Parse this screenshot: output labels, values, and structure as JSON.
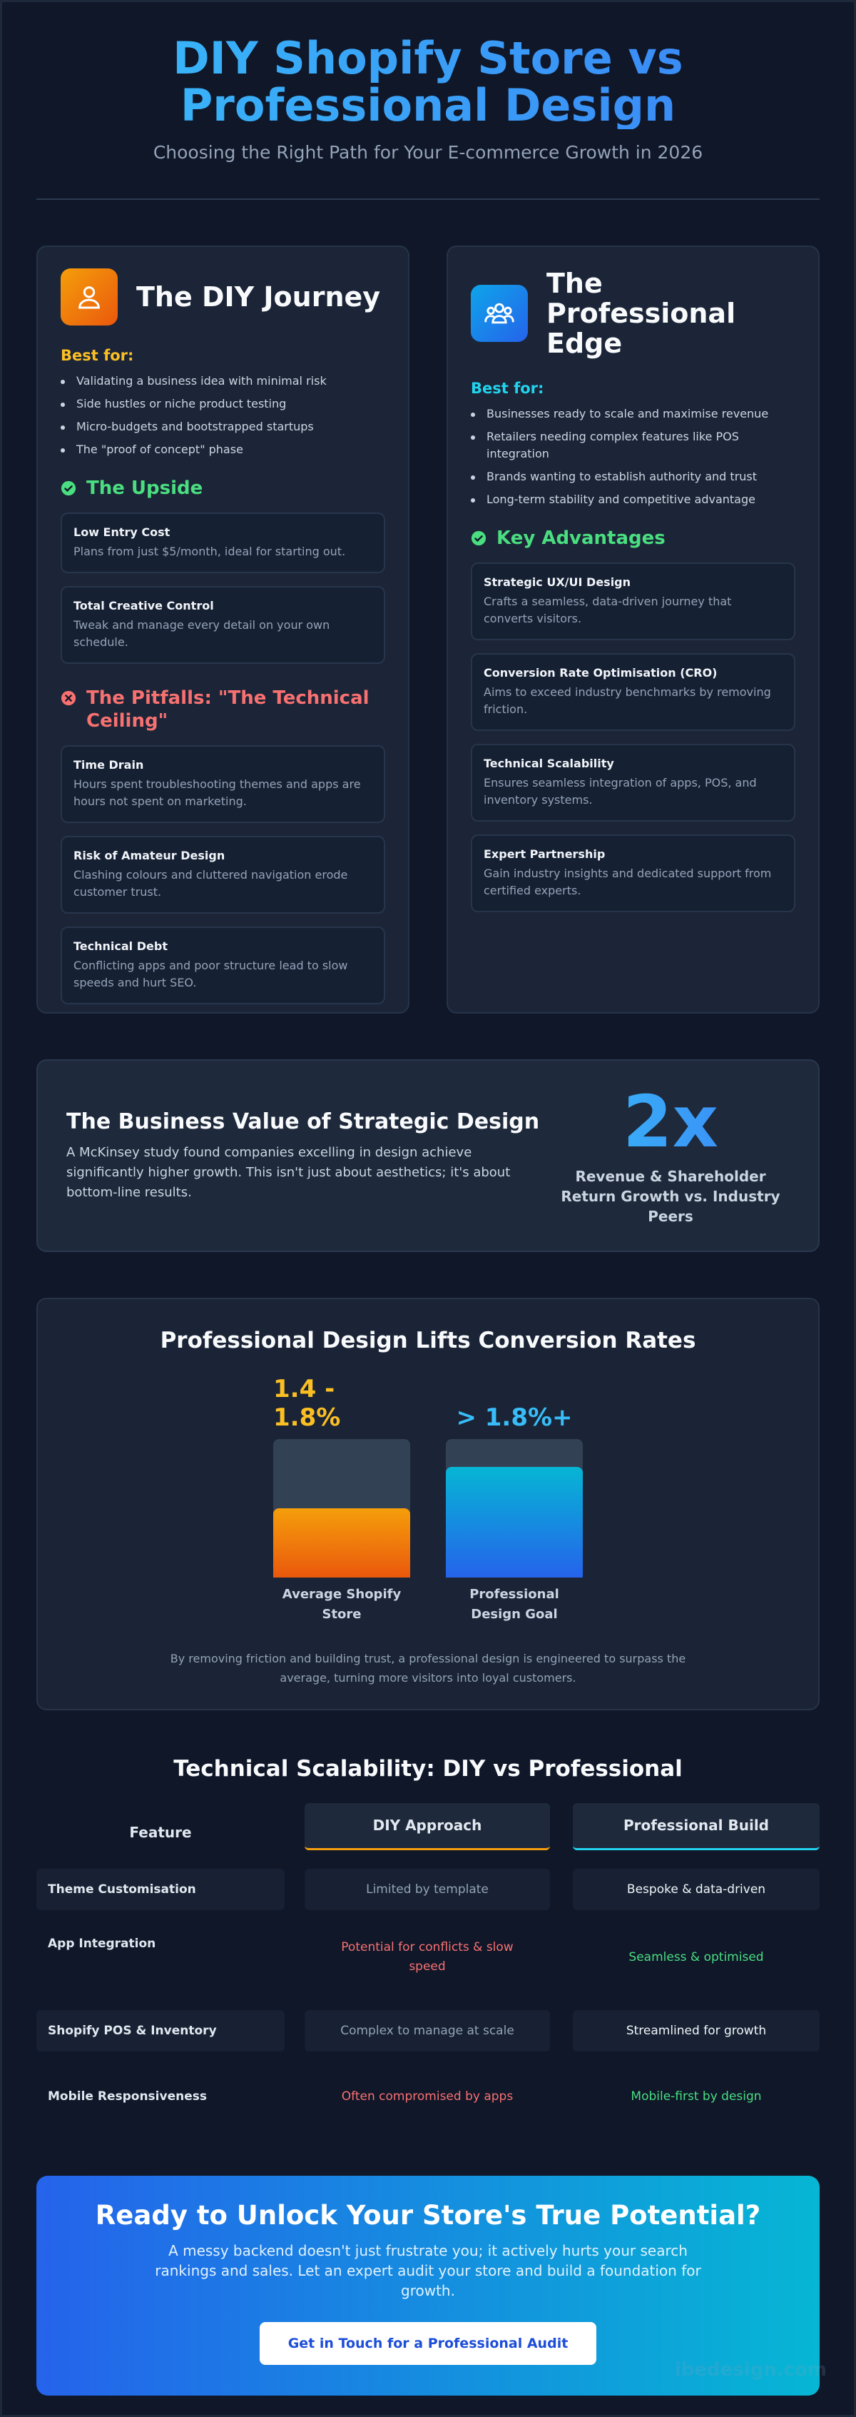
{
  "header": {
    "title": "DIY Shopify Store vs Professional Design",
    "subtitle": "Choosing the Right Path for Your E-commerce Growth in 2026"
  },
  "diy": {
    "icon": "user-icon",
    "title": "The DIY Journey",
    "best_for_label": "Best for:",
    "best_for": [
      "Validating a business idea with minimal risk",
      "Side hustles or niche product testing",
      "Micro-budgets and bootstrapped startups",
      "The \"proof of concept\" phase"
    ],
    "upside_title": "The Upside",
    "upside": [
      {
        "title": "Low Entry Cost",
        "text": "Plans from just $5/month, ideal for starting out."
      },
      {
        "title": "Total Creative Control",
        "text": "Tweak and manage every detail on your own schedule."
      }
    ],
    "pitfalls_title": "The Pitfalls: \"The Technical Ceiling\"",
    "pitfalls": [
      {
        "title": "Time Drain",
        "text": "Hours spent troubleshooting themes and apps are hours not spent on marketing."
      },
      {
        "title": "Risk of Amateur Design",
        "text": "Clashing colours and cluttered navigation erode customer trust."
      },
      {
        "title": "Technical Debt",
        "text": "Conflicting apps and poor structure lead to slow speeds and hurt SEO."
      }
    ]
  },
  "pro": {
    "icon": "users-icon",
    "title": "The Professional Edge",
    "best_for_label": "Best for:",
    "best_for": [
      "Businesses ready to scale and maximise revenue",
      "Retailers needing complex features like POS integration",
      "Brands wanting to establish authority and trust",
      "Long-term stability and competitive advantage"
    ],
    "advantages_title": "Key Advantages",
    "advantages": [
      {
        "title": "Strategic UX/UI Design",
        "text": "Crafts a seamless, data-driven journey that converts visitors."
      },
      {
        "title": "Conversion Rate Optimisation (CRO)",
        "text": "Aims to exceed industry benchmarks by removing friction."
      },
      {
        "title": "Technical Scalability",
        "text": "Ensures seamless integration of apps, POS, and inventory systems."
      },
      {
        "title": "Expert Partnership",
        "text": "Gain industry insights and dedicated support from certified experts."
      }
    ]
  },
  "value": {
    "title": "The Business Value of Strategic Design",
    "text": "A McKinsey study found companies excelling in design achieve significantly higher growth. This isn't just about aesthetics; it's about bottom-line results.",
    "stat": "2x",
    "stat_caption": "Revenue & Shareholder Return Growth vs. Industry Peers"
  },
  "conversion": {
    "title": "Professional Design Lifts Conversion Rates",
    "note": "By removing friction and building trust, a professional design is engineered to surpass the average, turning more visitors into loyal customers."
  },
  "chart_data": {
    "type": "bar",
    "title": "Professional Design Lifts Conversion Rates",
    "categories": [
      "Average Shopify Store",
      "Professional Design Goal"
    ],
    "value_labels": [
      "1.4 - 1.8%",
      "> 1.8%+"
    ],
    "values": [
      0.5,
      0.8
    ],
    "colors": [
      "#f59e0b",
      "#06b6d4"
    ]
  },
  "scalability": {
    "title": "Technical Scalability: DIY vs Professional",
    "headers": [
      "Feature",
      "DIY Approach",
      "Professional Build"
    ],
    "rows": [
      {
        "feature": "Theme Customisation",
        "diy": "Limited by template",
        "pro": "Bespoke & data-driven"
      },
      {
        "feature": "App Integration",
        "diy": "Potential for conflicts & slow speed",
        "pro": "Seamless & optimised"
      },
      {
        "feature": "Shopify POS & Inventory",
        "diy": "Complex to manage at scale",
        "pro": "Streamlined for growth"
      },
      {
        "feature": "Mobile Responsiveness",
        "diy": "Often compromised by apps",
        "pro": "Mobile-first by design"
      }
    ]
  },
  "cta": {
    "title": "Ready to Unlock Your Store's True Potential?",
    "text": "A messy backend doesn't just frustrate you; it actively hurts your search rankings and sales. Let an expert audit your store and build a foundation for growth.",
    "button": "Get in Touch for a Professional Audit"
  },
  "watermark": "ibedesign.com",
  "colors": {
    "accent_blue": "#38bdf8",
    "accent_orange": "#f59e0b",
    "positive": "#4ade80",
    "negative": "#f87171"
  }
}
